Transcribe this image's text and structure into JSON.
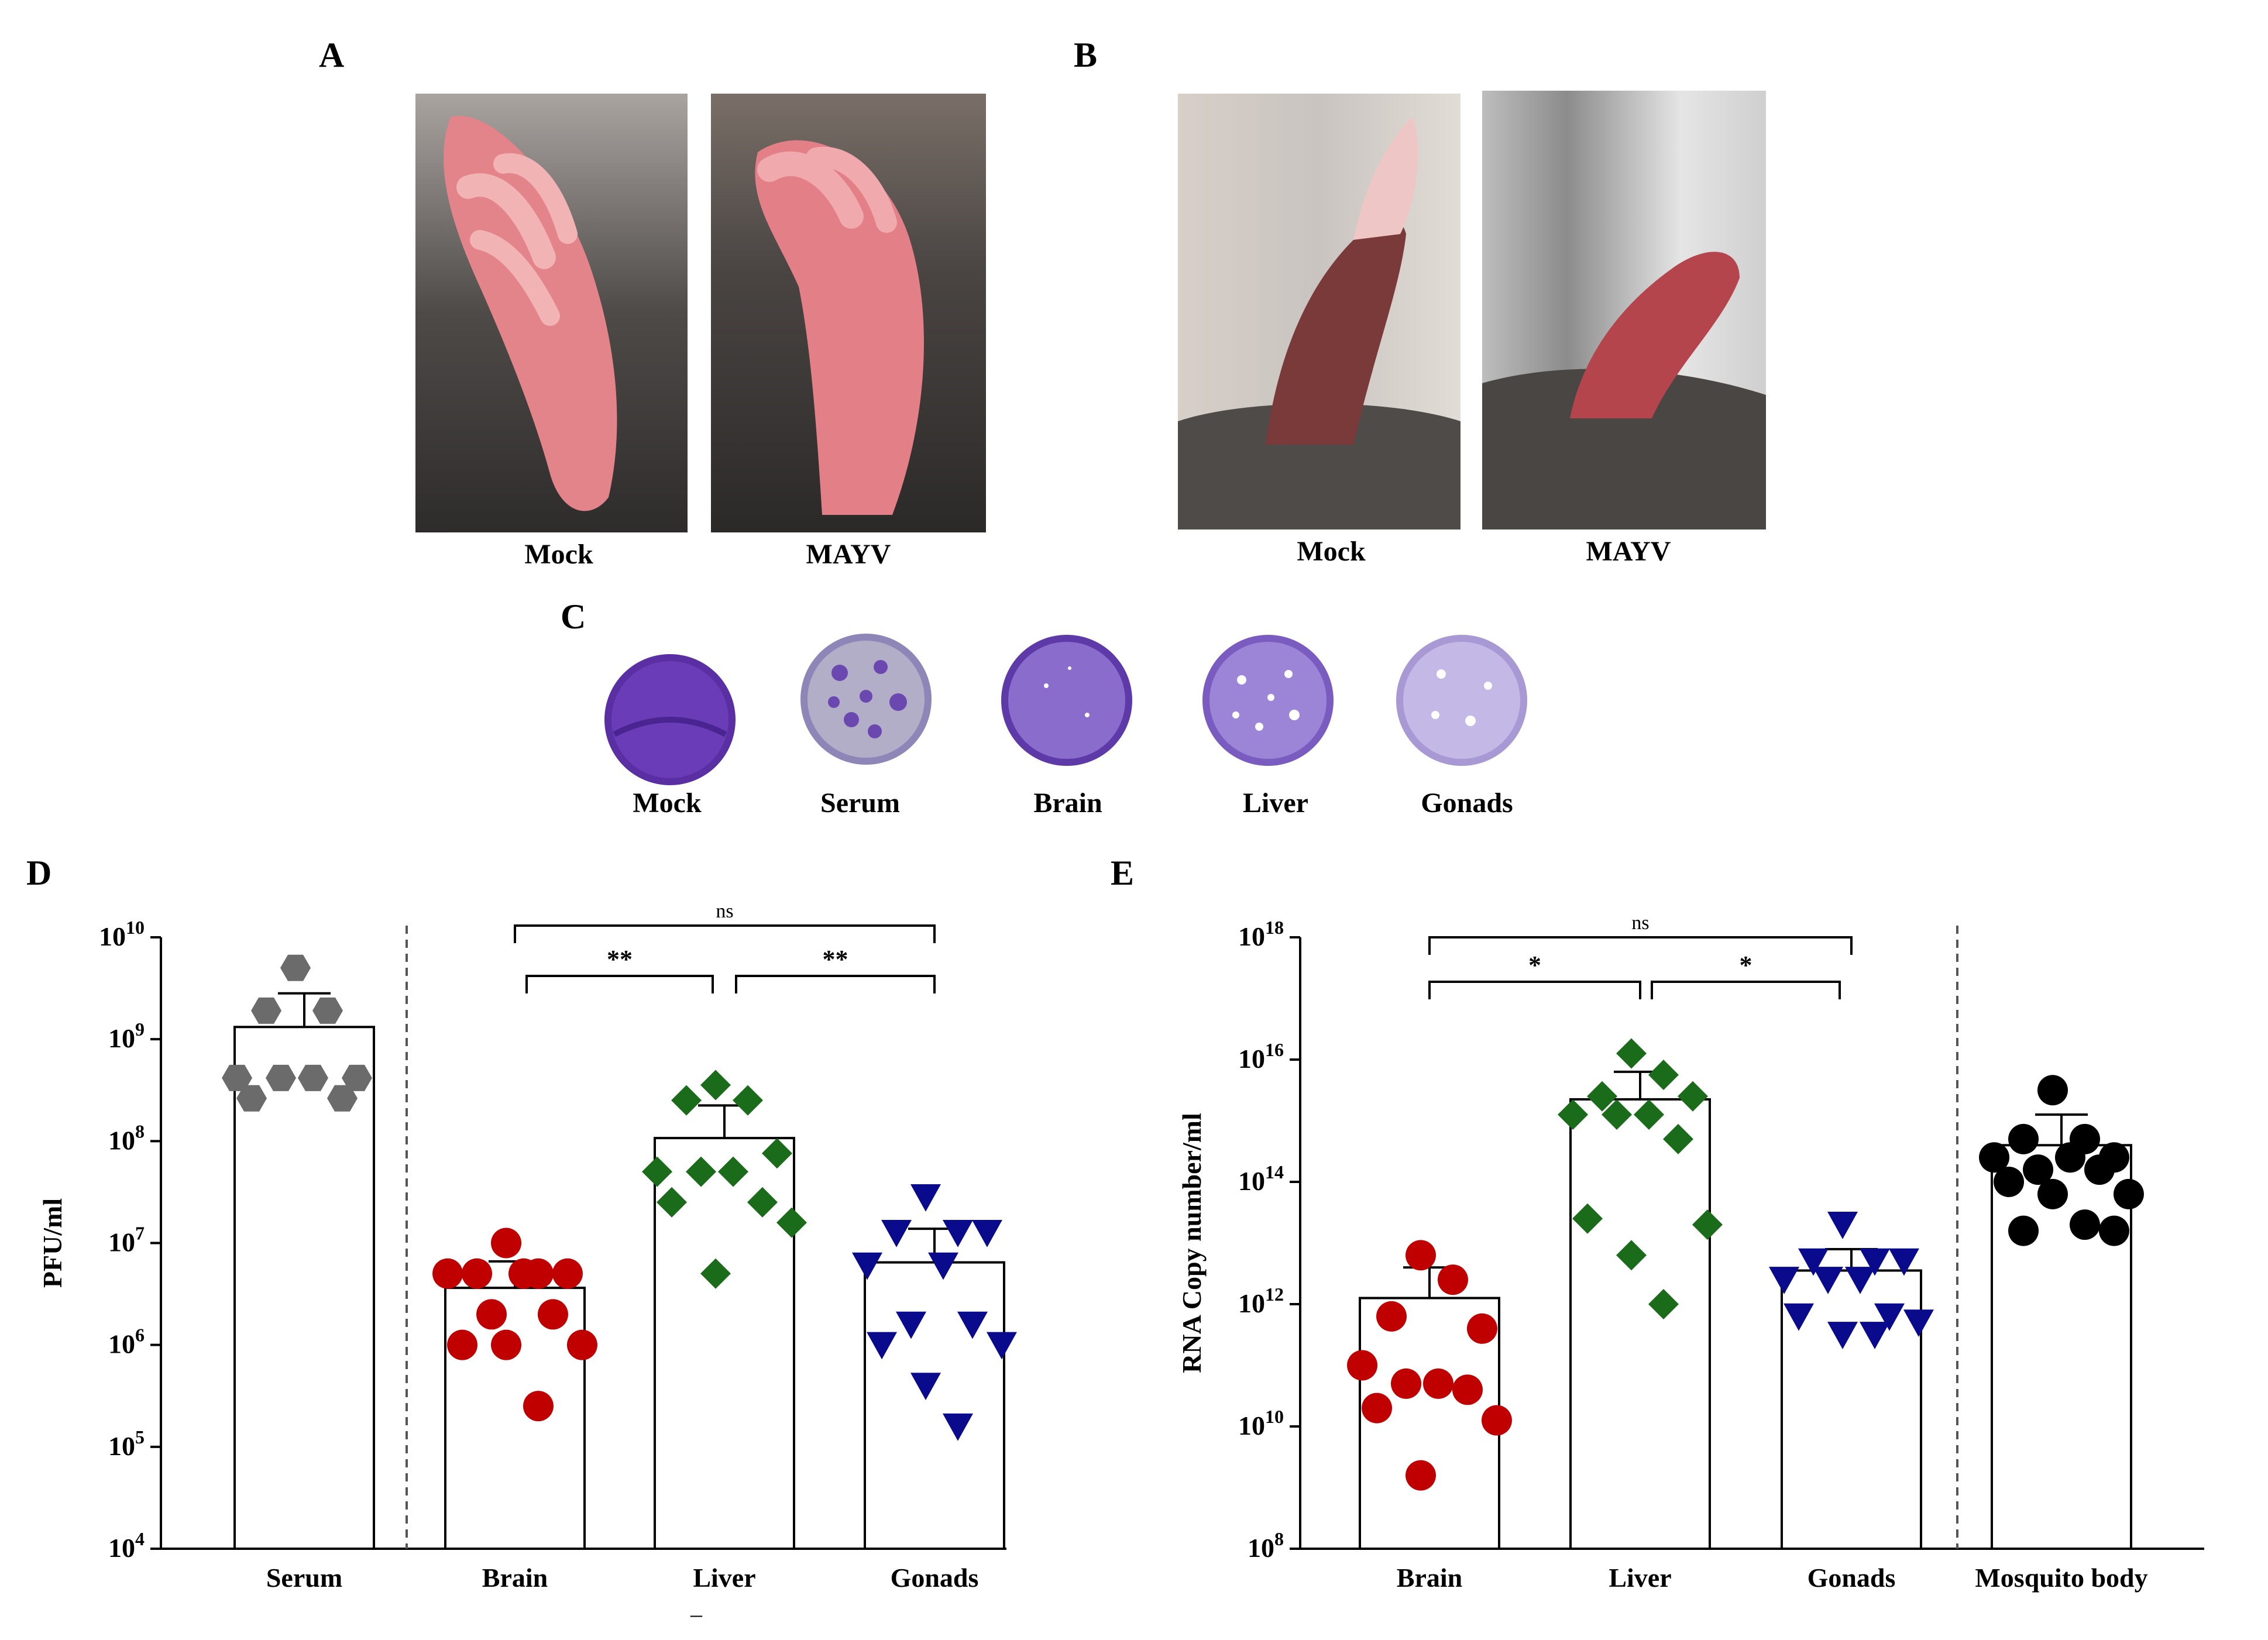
{
  "panel_labels": {
    "A": "A",
    "B": "B",
    "C": "C",
    "D": "D",
    "E": "E"
  },
  "panelA": {
    "left_caption": "Mock",
    "right_caption": "MAYV"
  },
  "panelB": {
    "left_caption": "Mock",
    "right_caption": "MAYV"
  },
  "panelC": {
    "captions": [
      "Mock",
      "Serum",
      "Brain",
      "Liver",
      "Gonads"
    ]
  },
  "stray_mark": "–",
  "colors": {
    "serum": "#6b6b6b",
    "brain": "#c00000",
    "liver": "#1a6b1a",
    "gonads": "#0a0a8c",
    "mosquito": "#000000"
  },
  "chart_data": [
    {
      "type": "bar",
      "panel": "D",
      "ylabel": "PFU/ml",
      "yscale": "log10",
      "ylim_exp": [
        4,
        10
      ],
      "ytick_exps": [
        4,
        5,
        6,
        7,
        8,
        9,
        10
      ],
      "categories": [
        "Serum",
        "Brain",
        "Liver",
        "Gonads"
      ],
      "values_log10": [
        9.12,
        6.56,
        8.03,
        6.81
      ],
      "error_upper_log10": [
        9.45,
        6.82,
        8.35,
        7.14
      ],
      "divider_after": "Serum",
      "points_log10": [
        [
          9.7,
          9.28,
          9.28,
          8.62,
          8.62,
          8.62,
          8.62,
          8.42,
          8.42
        ],
        [
          7.0,
          6.7,
          6.7,
          6.7,
          6.7,
          6.7,
          6.3,
          6.3,
          6.0,
          6.0,
          6.0,
          5.4
        ],
        [
          8.55,
          8.4,
          8.4,
          7.88,
          7.7,
          7.7,
          7.7,
          7.4,
          7.4,
          7.2,
          6.7
        ],
        [
          7.45,
          7.1,
          7.1,
          7.1,
          6.78,
          6.78,
          6.2,
          6.2,
          6.0,
          6.0,
          5.6,
          5.2
        ]
      ],
      "markers": [
        "hexagon",
        "circle",
        "diamond",
        "triangle-down"
      ],
      "significance": [
        {
          "pair": [
            "Brain",
            "Liver"
          ],
          "label": "**"
        },
        {
          "pair": [
            "Liver",
            "Gonads"
          ],
          "label": "**"
        },
        {
          "pair": [
            "Brain",
            "Gonads"
          ],
          "label": "ns"
        }
      ]
    },
    {
      "type": "bar",
      "panel": "E",
      "ylabel": "RNA Copy number/ml",
      "yscale": "log10",
      "ylim_exp": [
        8,
        18
      ],
      "ytick_exps": [
        8,
        10,
        12,
        14,
        16,
        18
      ],
      "categories": [
        "Brain",
        "Liver",
        "Gonads",
        "Mosquito body"
      ],
      "values_log10": [
        12.1,
        15.35,
        12.55,
        14.6
      ],
      "error_upper_log10": [
        12.6,
        15.8,
        12.9,
        15.1
      ],
      "divider_after": "Gonads",
      "points_log10": [
        [
          12.8,
          12.4,
          11.8,
          11.6,
          11.0,
          10.7,
          10.7,
          10.6,
          10.3,
          10.1,
          9.2
        ],
        [
          16.1,
          15.75,
          15.4,
          15.4,
          15.1,
          15.1,
          15.1,
          14.7,
          13.4,
          13.3,
          12.8,
          12.0
        ],
        [
          13.3,
          12.7,
          12.7,
          12.7,
          12.4,
          12.4,
          12.4,
          11.8,
          11.8,
          11.7,
          11.5,
          11.5
        ],
        [
          15.5,
          14.7,
          14.7,
          14.4,
          14.4,
          14.4,
          14.2,
          14.2,
          14.0,
          13.8,
          13.8,
          13.3,
          13.2,
          13.2
        ]
      ],
      "markers": [
        "circle",
        "diamond",
        "triangle-down",
        "circle"
      ],
      "significance": [
        {
          "pair": [
            "Brain",
            "Liver"
          ],
          "label": "*"
        },
        {
          "pair": [
            "Liver",
            "Gonads"
          ],
          "label": "*"
        },
        {
          "pair": [
            "Brain",
            "Gonads"
          ],
          "label": "ns"
        }
      ]
    }
  ]
}
